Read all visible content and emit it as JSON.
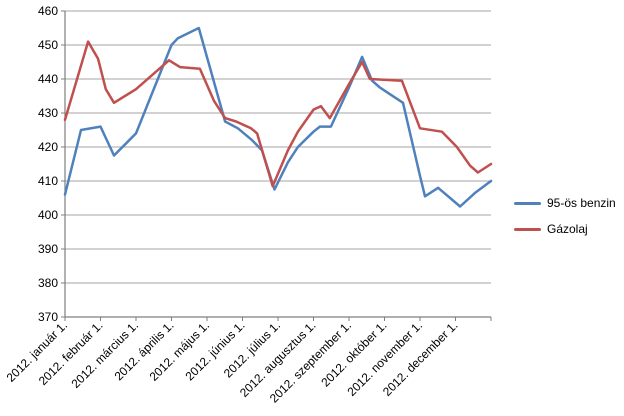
{
  "chart_data": {
    "type": "line",
    "title": "",
    "xlabel": "",
    "ylabel": "",
    "ylim": [
      370,
      460
    ],
    "y_ticks": [
      370,
      380,
      390,
      400,
      410,
      420,
      430,
      440,
      450,
      460
    ],
    "x_range_months": [
      0,
      12
    ],
    "grid": true,
    "legend_position": "right",
    "categories": [
      "2012. január 1.",
      "2012. február 1.",
      "2012. március 1.",
      "2012. április 1.",
      "2012. május 1.",
      "2012. június 1.",
      "2012. július 1.",
      "2012. augusztus 1.",
      "2012. szeptember 1.",
      "2012. október 1.",
      "2012. november 1.",
      "2012. december 1."
    ],
    "series": [
      {
        "name": "95-ös benzin",
        "color": "#4F81BD",
        "points": [
          [
            0.0,
            406
          ],
          [
            0.45,
            425
          ],
          [
            1.0,
            426
          ],
          [
            1.38,
            417.5
          ],
          [
            2.0,
            424
          ],
          [
            3.0,
            450
          ],
          [
            3.18,
            452
          ],
          [
            3.77,
            455
          ],
          [
            4.51,
            427.5
          ],
          [
            4.87,
            425.5
          ],
          [
            5.27,
            422
          ],
          [
            5.55,
            419
          ],
          [
            5.9,
            407.5
          ],
          [
            6.28,
            415.5
          ],
          [
            6.56,
            420
          ],
          [
            7.0,
            424.5
          ],
          [
            7.18,
            426
          ],
          [
            7.49,
            426
          ],
          [
            8.0,
            437.5
          ],
          [
            8.37,
            446.5
          ],
          [
            8.65,
            439.5
          ],
          [
            8.87,
            437.5
          ],
          [
            9.52,
            433
          ],
          [
            10.0,
            411.5
          ],
          [
            10.14,
            405.5
          ],
          [
            10.51,
            408
          ],
          [
            11.13,
            402.5
          ],
          [
            11.55,
            406.5
          ],
          [
            12.0,
            410
          ]
        ]
      },
      {
        "name": "Gázolaj",
        "color": "#C0504D",
        "points": [
          [
            0.0,
            428
          ],
          [
            0.65,
            451
          ],
          [
            0.93,
            446
          ],
          [
            1.15,
            437
          ],
          [
            1.38,
            433
          ],
          [
            2.0,
            437
          ],
          [
            2.93,
            445.5
          ],
          [
            3.24,
            443.5
          ],
          [
            3.8,
            443
          ],
          [
            4.2,
            433.5
          ],
          [
            4.51,
            428.5
          ],
          [
            4.82,
            427.5
          ],
          [
            5.24,
            425.5
          ],
          [
            5.41,
            424
          ],
          [
            5.85,
            408.5
          ],
          [
            6.28,
            419
          ],
          [
            6.56,
            424.5
          ],
          [
            7.0,
            431
          ],
          [
            7.21,
            432
          ],
          [
            7.46,
            428.5
          ],
          [
            8.0,
            438.5
          ],
          [
            8.37,
            445
          ],
          [
            8.59,
            440
          ],
          [
            9.49,
            439.5
          ],
          [
            10.0,
            425.5
          ],
          [
            10.62,
            424.5
          ],
          [
            11.04,
            420
          ],
          [
            11.41,
            414.5
          ],
          [
            11.63,
            412.5
          ],
          [
            12.0,
            415
          ]
        ]
      }
    ],
    "colors": {
      "gridline": "#A6A6A6",
      "axis": "#7F7F7F",
      "tick_label": "#000000",
      "background": "#FFFFFF"
    }
  }
}
